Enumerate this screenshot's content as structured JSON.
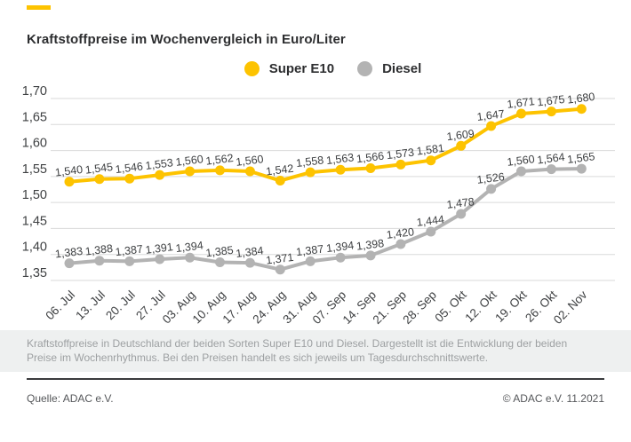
{
  "title": "Kraftstoffpreise im Wochenvergleich in Euro/Liter",
  "accent_color": "#fdc300",
  "legend": {
    "items": [
      {
        "label": "Super E10",
        "color": "#fdc300"
      },
      {
        "label": "Diesel",
        "color": "#b3b3b3"
      }
    ]
  },
  "chart_data": {
    "type": "line",
    "title": "Kraftstoffpreise im Wochenvergleich in Euro/Liter",
    "categories": [
      "06. Jul",
      "13. Jul",
      "20. Jul",
      "27. Jul",
      "03. Aug",
      "10. Aug",
      "17. Aug",
      "24. Aug",
      "31. Aug",
      "07. Sep",
      "14. Sep",
      "21. Sep",
      "28. Sep",
      "05. Okt",
      "12. Okt",
      "19. Okt",
      "26. Okt",
      "02. Nov"
    ],
    "series": [
      {
        "name": "Super E10",
        "color": "#fdc300",
        "values": [
          1.54,
          1.545,
          1.546,
          1.553,
          1.56,
          1.562,
          1.56,
          1.542,
          1.558,
          1.563,
          1.566,
          1.573,
          1.581,
          1.609,
          1.647,
          1.671,
          1.675,
          1.68
        ]
      },
      {
        "name": "Diesel",
        "color": "#b3b3b3",
        "values": [
          1.383,
          1.388,
          1.387,
          1.391,
          1.394,
          1.385,
          1.384,
          1.371,
          1.387,
          1.394,
          1.398,
          1.42,
          1.444,
          1.478,
          1.526,
          1.56,
          1.564,
          1.565
        ]
      }
    ],
    "ylim": [
      1.35,
      1.7
    ],
    "ytick_step": 0.05,
    "ytick_labels": [
      "1,70",
      "1,65",
      "1,60",
      "1,55",
      "1,50",
      "1,45",
      "1,40",
      "1,35"
    ],
    "grid": true,
    "legend_position": "top-center",
    "decimal_separator": ",",
    "point_labels": true,
    "xlabel": "",
    "ylabel": "Euro/Liter"
  },
  "footnote": "Kraftstoffpreise in Deutschland der beiden Sorten Super E10 und Diesel. Dargestellt ist die Entwicklung der beiden Preise im Wochenrhythmus. Bei den Preisen handelt es sich jeweils um Tagesdurchschnittswerte.",
  "footer": {
    "source": "Quelle: ADAC e.V.",
    "copyright": "© ADAC e.V. 11.2021"
  }
}
